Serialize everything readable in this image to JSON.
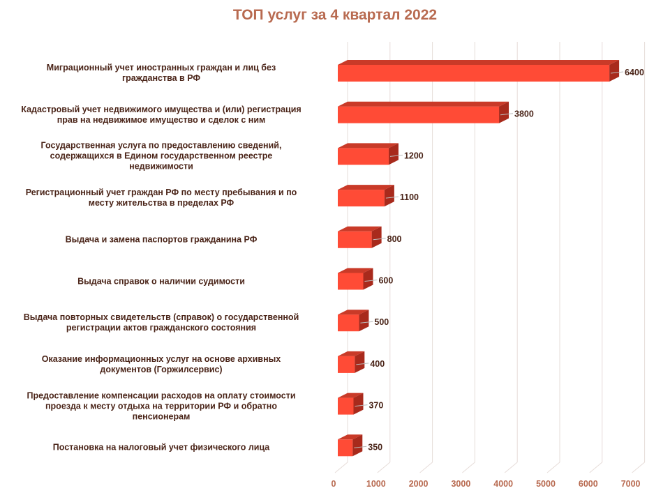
{
  "chart_data": {
    "type": "bar",
    "orientation": "horizontal",
    "style": "3d",
    "title": "ТОП услуг за 4 квартал 2022",
    "categories": [
      "Миграционный учет иностранных граждан и лиц без\nгражданства в РФ",
      "Кадастровый учет недвижимого имущества и (или)  регистрация\nправ на недвижимое имущество и сделок с ним",
      "Государственная услуга по предоставлению сведений,\nсодержащихся в Едином государственном реестре\nнедвижимости",
      "Регистрационный учет граждан РФ по месту пребывания и по\nместу жительства в пределах РФ",
      "Выдача и замена паспортов гражданина РФ",
      "Выдача справок о наличии судимости ",
      "Выдача повторных свидетельств (справок) о государственной\nрегистрации актов гражданского состояния",
      "Оказание информационных услуг на основе архивных\nдокументов (Горжилсервис)",
      "Предоставление компенсации расходов на оплату стоимости\nпроезда к месту отдыха на территории РФ и обратно\nпенсионерам",
      "Постановка на налоговый учет физического лица"
    ],
    "values": [
      6400,
      3800,
      1200,
      1100,
      800,
      600,
      500,
      400,
      370,
      350
    ],
    "xlim": [
      0,
      7000
    ],
    "xticks": [
      "0",
      "1000",
      "2000",
      "3000",
      "4000",
      "5000",
      "6000",
      "7000"
    ],
    "grid": true,
    "legend": "none",
    "colors": {
      "bar": "#ff4b36",
      "bar_top": "#c93a28",
      "bar_side": "#a82a1c",
      "grid": "#e6dcd8",
      "tick": "#b86a50",
      "label": "#4a2418"
    }
  }
}
